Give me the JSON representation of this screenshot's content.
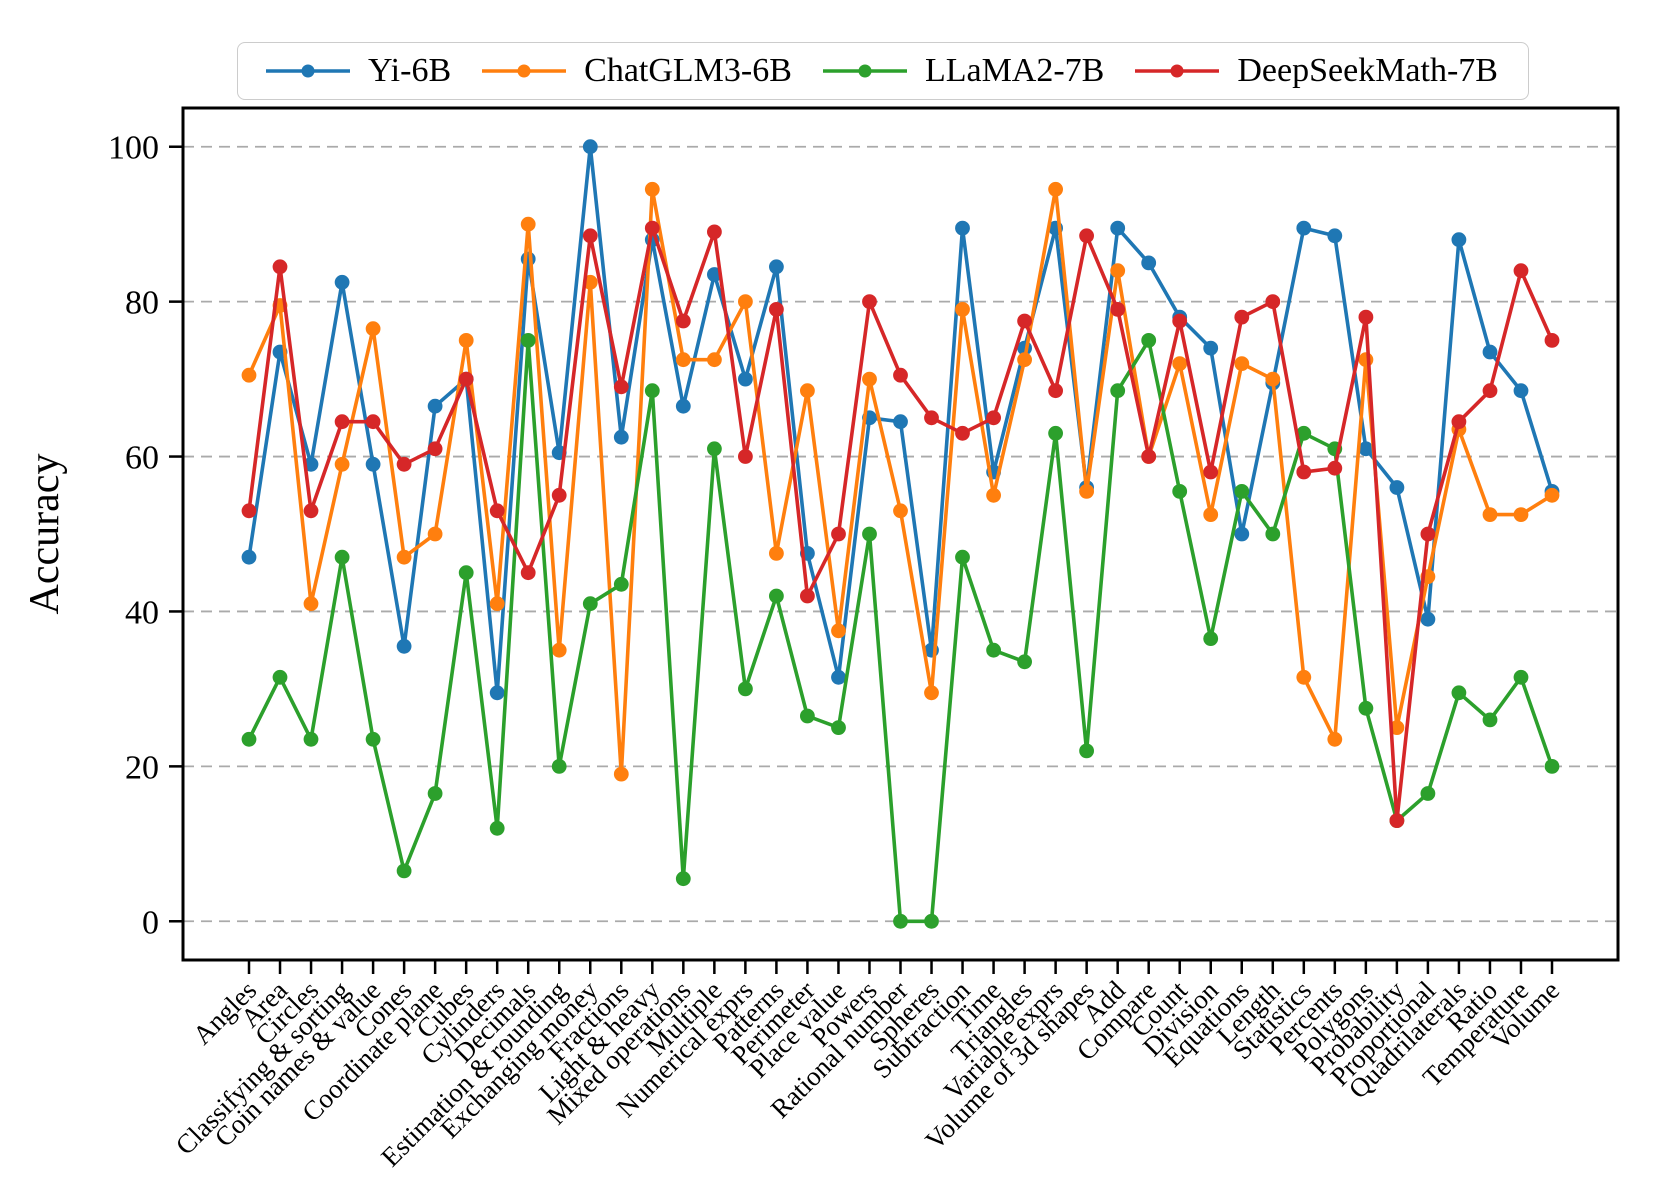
{
  "figure": {
    "background": "#ffffff",
    "spine_color": "#000000",
    "grid_color": "#aaaaaa"
  },
  "legend": {
    "position": "top",
    "items": [
      {
        "label": "Yi-6B",
        "color": "#1f77b4"
      },
      {
        "label": "ChatGLM3-6B",
        "color": "#ff7f0e"
      },
      {
        "label": "LLaMA2-7B",
        "color": "#2ca02c"
      },
      {
        "label": "DeepSeekMath-7B",
        "color": "#d62728"
      }
    ]
  },
  "chart_data": {
    "type": "line",
    "title": "",
    "xlabel": "",
    "ylabel": "Accuracy",
    "ylim": [
      -5,
      105
    ],
    "y_ticks": [
      0,
      20,
      40,
      60,
      80,
      100
    ],
    "grid": "horizontal-dashed",
    "legend_position": "top",
    "marker": "circle",
    "categories": [
      "Angles",
      "Area",
      "Circles",
      "Classifying & sorting",
      "Coin names & value",
      "Cones",
      "Coordinate plane",
      "Cubes",
      "Cylinders",
      "Decimals",
      "Estimation & rounding",
      "Exchanging money",
      "Fractions",
      "Light & heavy",
      "Mixed operations",
      "Multiple",
      "Numerical exprs",
      "Patterns",
      "Perimeter",
      "Place value",
      "Powers",
      "Rational number",
      "Spheres",
      "Subtraction",
      "Time",
      "Triangles",
      "Variable exprs",
      "Volume of 3d shapes",
      "Add",
      "Compare",
      "Count",
      "Division",
      "Equations",
      "Length",
      "Statistics",
      "Percents",
      "Polygons",
      "Probability",
      "Proportional",
      "Quadrilaterals",
      "Ratio",
      "Temperature",
      "Volume"
    ],
    "series": [
      {
        "name": "Yi-6B",
        "color": "#1f77b4",
        "values": [
          47,
          73.5,
          59,
          82.5,
          59,
          35.5,
          66.5,
          70,
          29.5,
          85.5,
          60.5,
          100,
          62.5,
          88,
          66.5,
          83.5,
          70,
          84.5,
          47.5,
          31.5,
          65,
          64.5,
          35,
          89.5,
          58,
          74,
          89.5,
          56,
          89.5,
          85,
          78,
          74,
          50,
          69.5,
          89.5,
          88.5,
          61,
          56,
          39,
          88,
          73.5,
          68.5,
          55.5
        ]
      },
      {
        "name": "ChatGLM3-6B",
        "color": "#ff7f0e",
        "values": [
          70.5,
          79.5,
          41,
          59,
          76.5,
          47,
          50,
          75,
          41,
          90,
          35,
          82.5,
          19,
          94.5,
          72.5,
          72.5,
          80,
          47.5,
          68.5,
          37.5,
          70,
          53,
          29.5,
          79,
          55,
          72.5,
          94.5,
          55.5,
          84,
          60,
          72,
          52.5,
          72,
          70,
          31.5,
          23.5,
          72.5,
          25,
          44.5,
          63.5,
          52.5,
          52.5,
          55
        ]
      },
      {
        "name": "LLaMA2-7B",
        "color": "#2ca02c",
        "values": [
          23.5,
          31.5,
          23.5,
          47,
          23.5,
          6.5,
          16.5,
          45,
          12,
          75,
          20,
          41,
          43.5,
          68.5,
          5.5,
          61,
          30,
          42,
          26.5,
          25,
          50,
          0,
          0,
          47,
          35,
          33.5,
          63,
          22,
          68.5,
          75,
          55.5,
          36.5,
          55.5,
          50,
          63,
          61,
          27.5,
          13,
          16.5,
          29.5,
          26,
          31.5,
          20
        ]
      },
      {
        "name": "DeepSeekMath-7B",
        "color": "#d62728",
        "values": [
          53,
          84.5,
          53,
          64.5,
          64.5,
          59,
          61,
          70,
          53,
          45,
          55,
          88.5,
          69,
          89.5,
          77.5,
          89,
          60,
          79,
          42,
          50,
          80,
          70.5,
          65,
          63,
          65,
          77.5,
          68.5,
          88.5,
          79,
          60,
          77.5,
          58,
          78,
          80,
          58,
          58.5,
          78,
          13,
          50,
          64.5,
          68.5,
          84,
          75
        ]
      }
    ]
  }
}
